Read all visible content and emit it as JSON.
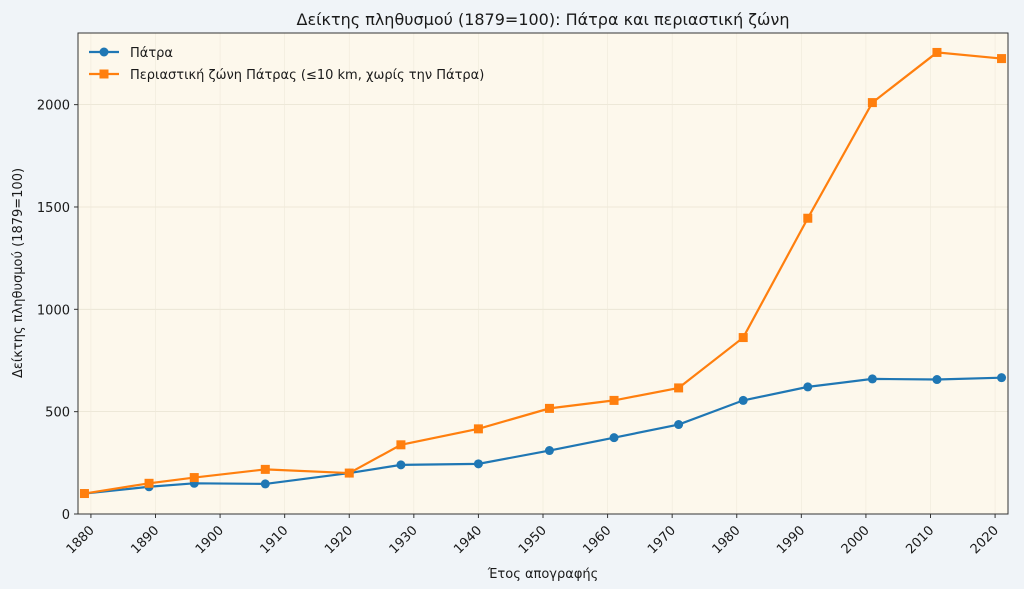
{
  "chart_data": {
    "type": "line",
    "title": "Δείκτης πληθυσμού (1879=100): Πάτρα και περιαστική ζώνη",
    "xlabel": "Έτος απογραφής",
    "ylabel": "Δείκτης πληθυσμού (1879=100)",
    "xlim": [
      1878,
      2022
    ],
    "ylim": [
      0,
      2350
    ],
    "xticks": [
      1880,
      1890,
      1900,
      1910,
      1920,
      1930,
      1940,
      1950,
      1960,
      1970,
      1980,
      1990,
      2000,
      2010,
      2020
    ],
    "yticks": [
      0,
      500,
      1000,
      1500,
      2000
    ],
    "grid": true,
    "legend_position": "top-left",
    "x": [
      1879,
      1889,
      1896,
      1907,
      1920,
      1928,
      1940,
      1951,
      1961,
      1971,
      1981,
      1991,
      2001,
      2011,
      2021
    ],
    "series": [
      {
        "name": "Πάτρα",
        "color": "#1f77b4",
        "marker": "circle",
        "values": [
          100,
          133,
          150,
          147,
          200,
          240,
          245,
          310,
          373,
          437,
          555,
          621,
          660,
          657,
          666
        ]
      },
      {
        "name": "Περιαστική ζώνη Πάτρας (≤10 km, χωρίς την Πάτρα)",
        "color": "#ff7f0e",
        "marker": "square",
        "values": [
          100,
          150,
          178,
          218,
          200,
          338,
          416,
          516,
          555,
          616,
          862,
          1445,
          2010,
          2255,
          2225
        ]
      }
    ],
    "colors": {
      "plot_bg": "#fdf8ec",
      "page_bg": "#f0f4f8"
    }
  }
}
